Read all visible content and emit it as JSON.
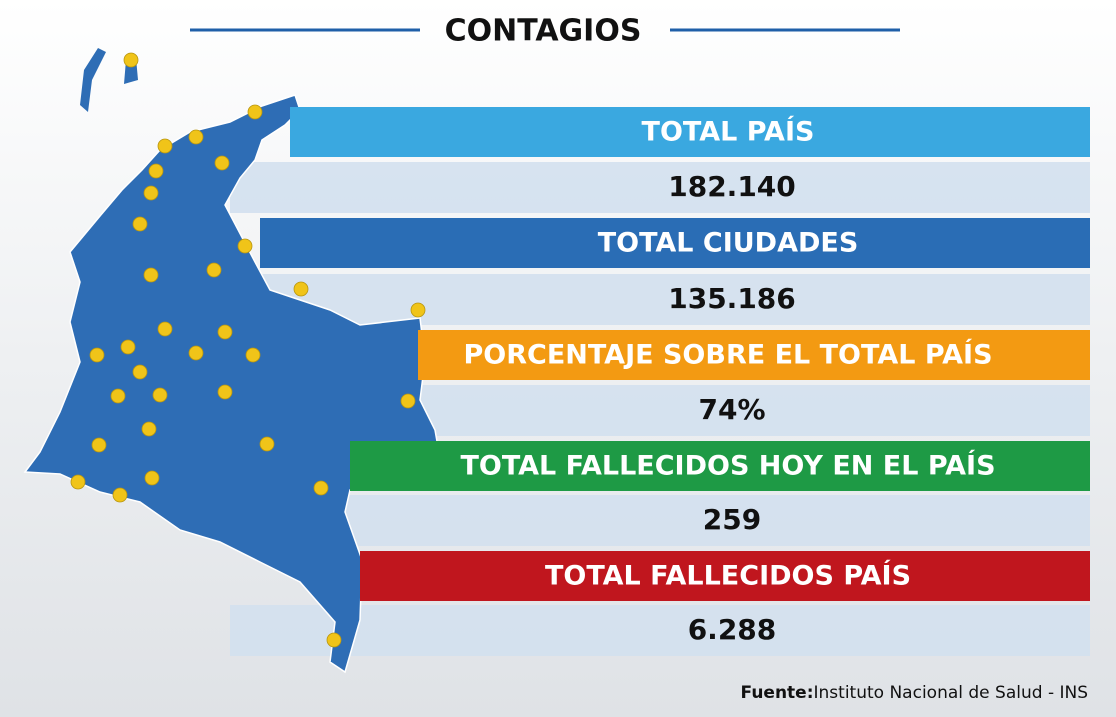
{
  "header": {
    "title": "CONTAGIOS"
  },
  "stats": [
    {
      "label": "TOTAL PAÍS",
      "value": "182.140"
    },
    {
      "label": "TOTAL CIUDADES",
      "value": "135.186"
    },
    {
      "label": "PORCENTAJE SOBRE EL TOTAL PAÍS",
      "value": "74%"
    },
    {
      "label": "TOTAL FALLECIDOS HOY EN EL PAÍS",
      "value": "259"
    },
    {
      "label": "TOTAL FALLECIDOS PAÍS",
      "value": "6.288"
    }
  ],
  "source": {
    "label": "Fuente:",
    "text": "Instituto Nacional de Salud - INS"
  }
}
